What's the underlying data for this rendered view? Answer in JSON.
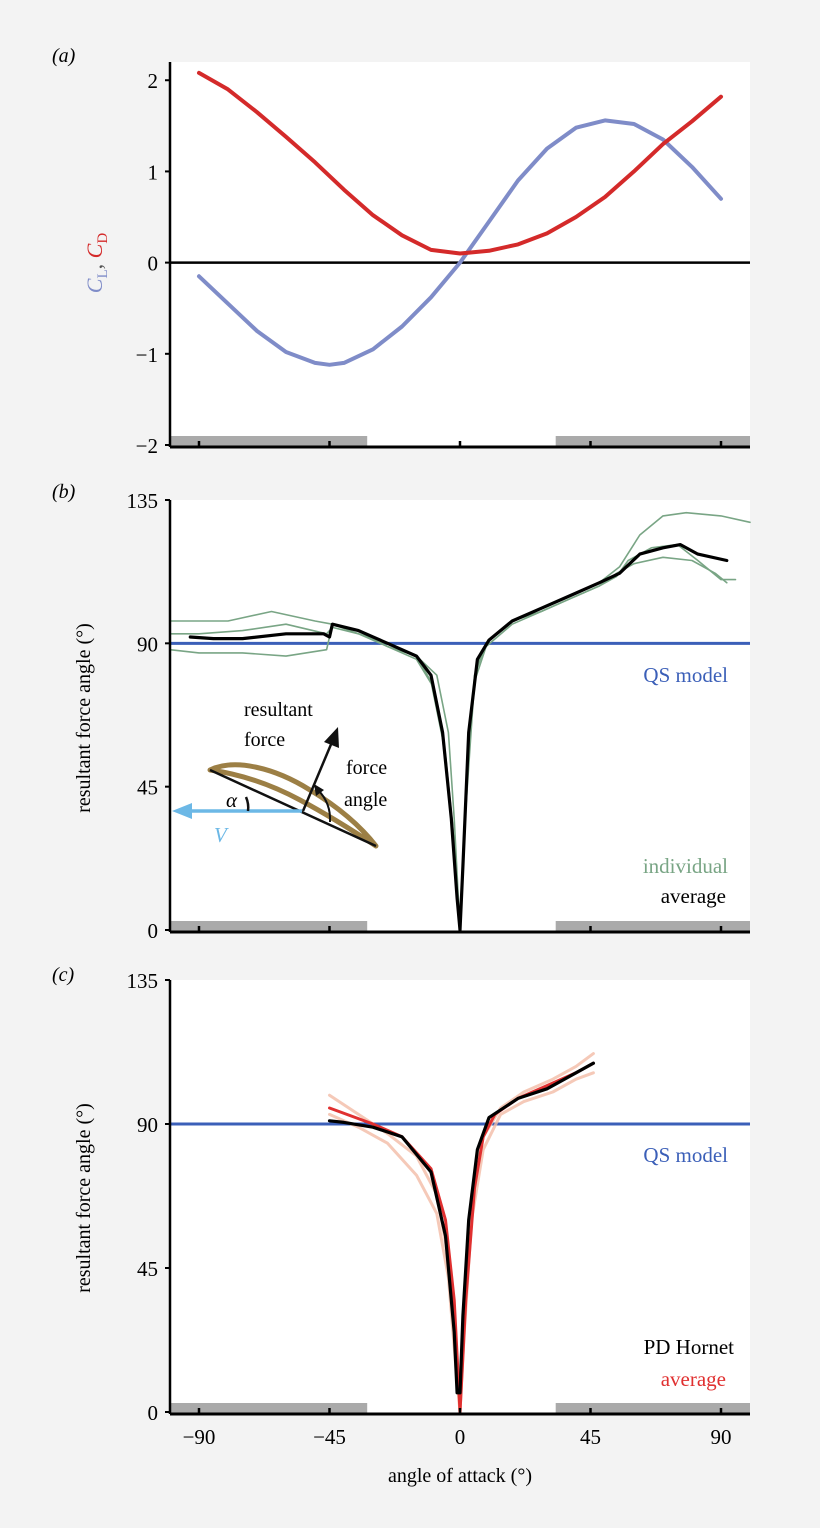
{
  "colors": {
    "lift": "#7f8cc8",
    "drag": "#d42a2a",
    "qs_model": "#3b5fb8",
    "individual": "#79a585",
    "average_b": "#000000",
    "pd_hornet": "#000000",
    "average_c": "#e03030",
    "individual_c": "#f2bca6",
    "stroke_reversal_bar": "#aaaaaa",
    "velocity": "#6cb8e6",
    "wing": "#9c7f45"
  },
  "chart_data": [
    {
      "panel_label": "(a)",
      "type": "line",
      "ylabel_parts": [
        "C",
        "L",
        ", ",
        "C",
        "D"
      ],
      "xlim": [
        -100,
        100
      ],
      "ylim": [
        -2,
        2.2
      ],
      "yticks": [
        2,
        1,
        0,
        -1,
        -2
      ],
      "ytick_labels": [
        "2",
        "1",
        "0",
        "−1",
        "−2"
      ],
      "xticks": [
        -90,
        -45,
        0,
        45,
        90
      ],
      "shaded_x_ranges": [
        [
          -100,
          -32
        ],
        [
          33,
          100
        ]
      ],
      "reference_line_y": 0,
      "series": [
        {
          "key": "lift",
          "x": [
            -90,
            -80,
            -70,
            -60,
            -50,
            -45,
            -40,
            -30,
            -20,
            -10,
            0,
            10,
            20,
            30,
            40,
            50,
            60,
            70,
            80,
            90
          ],
          "y": [
            -0.15,
            -0.45,
            -0.75,
            -0.98,
            -1.1,
            -1.12,
            -1.1,
            -0.95,
            -0.7,
            -0.38,
            0,
            0.45,
            0.9,
            1.25,
            1.48,
            1.56,
            1.52,
            1.35,
            1.05,
            0.7
          ]
        },
        {
          "key": "drag",
          "x": [
            -90,
            -80,
            -70,
            -60,
            -50,
            -40,
            -30,
            -20,
            -10,
            0,
            10,
            20,
            30,
            40,
            50,
            60,
            70,
            80,
            90
          ],
          "y": [
            2.08,
            1.9,
            1.65,
            1.38,
            1.1,
            0.8,
            0.52,
            0.3,
            0.14,
            0.1,
            0.13,
            0.2,
            0.32,
            0.5,
            0.72,
            1.0,
            1.3,
            1.55,
            1.82
          ]
        }
      ]
    },
    {
      "panel_label": "(b)",
      "type": "line",
      "ylabel": "resultant force angle (°)",
      "xlim": [
        -100,
        100
      ],
      "ylim": [
        0,
        135
      ],
      "yticks": [
        135,
        90,
        45,
        0
      ],
      "ytick_labels": [
        "135",
        "90",
        "45",
        "0"
      ],
      "xticks": [
        -90,
        -45,
        0,
        45,
        90
      ],
      "shaded_x_ranges": [
        [
          -100,
          -32
        ],
        [
          33,
          100
        ]
      ],
      "reference_line_y": 90,
      "reference_label": "QS model",
      "legend": [
        "individual",
        "average"
      ],
      "legend_placement": "bottom-right",
      "inset": {
        "resultant_force": [
          "resultant",
          "force"
        ],
        "force_angle": [
          "force",
          "angle"
        ],
        "alpha": "α",
        "velocity": "V"
      },
      "series": [
        {
          "key": "individual",
          "x": [
            -100,
            -90,
            -80,
            -65,
            -50,
            -44,
            -35,
            -25,
            -15,
            -10,
            -6,
            -3,
            -1,
            0,
            1,
            3,
            6,
            10,
            18,
            28,
            38,
            48,
            55,
            62,
            70,
            78,
            90,
            100
          ],
          "y": [
            97,
            97,
            97,
            100,
            97,
            96,
            93,
            90,
            86,
            78,
            60,
            35,
            10,
            0,
            20,
            60,
            84,
            91,
            97,
            101,
            105,
            109,
            114,
            124,
            130,
            131,
            130,
            128
          ]
        },
        {
          "key": "individual",
          "x": [
            -100,
            -90,
            -75,
            -60,
            -46,
            -44,
            -35,
            -25,
            -15,
            -8,
            -4,
            -2,
            0,
            2,
            5,
            9,
            18,
            28,
            38,
            48,
            54,
            58,
            66,
            75,
            82,
            90,
            95
          ],
          "y": [
            93,
            93,
            94,
            96,
            93,
            95,
            93,
            89,
            86,
            80,
            62,
            35,
            0,
            40,
            80,
            90,
            97,
            100,
            104,
            108,
            111,
            116,
            120,
            121,
            116,
            110,
            110
          ]
        },
        {
          "key": "individual",
          "x": [
            -100,
            -90,
            -75,
            -60,
            -46,
            -44,
            -35,
            -25,
            -15,
            -9,
            -5,
            -2,
            0,
            2,
            5,
            9,
            18,
            28,
            38,
            48,
            54,
            60,
            70,
            80,
            88,
            92
          ],
          "y": [
            88,
            87,
            87,
            86,
            88,
            96,
            94,
            89,
            85,
            76,
            55,
            28,
            0,
            38,
            78,
            89,
            96,
            100,
            104,
            108,
            112,
            115,
            117,
            116,
            112,
            109
          ]
        },
        {
          "key": "average_b",
          "x": [
            -93,
            -85,
            -75,
            -60,
            -47,
            -45,
            -44,
            -35,
            -25,
            -15,
            -10,
            -6,
            -3,
            -1,
            0,
            1,
            3,
            6,
            10,
            18,
            28,
            38,
            48,
            55,
            62,
            70,
            76,
            82,
            92
          ],
          "y": [
            92,
            91.5,
            91.5,
            93,
            93,
            92,
            96,
            94,
            90,
            86,
            80,
            62,
            35,
            10,
            0,
            20,
            62,
            85,
            91,
            97,
            101,
            105,
            109,
            112,
            118,
            120,
            121,
            118,
            116
          ]
        }
      ]
    },
    {
      "panel_label": "(c)",
      "type": "line",
      "ylabel": "resultant force angle (°)",
      "xlabel": "angle of attack (°)",
      "xlim": [
        -100,
        100
      ],
      "ylim": [
        0,
        135
      ],
      "yticks": [
        135,
        90,
        45,
        0
      ],
      "ytick_labels": [
        "135",
        "90",
        "45",
        "0"
      ],
      "xticks": [
        -90,
        -45,
        0,
        45,
        90
      ],
      "xtick_labels": [
        "−90",
        "−45",
        "0",
        "45",
        "90"
      ],
      "shaded_x_ranges": [
        [
          -100,
          -32
        ],
        [
          33,
          100
        ]
      ],
      "reference_line_y": 90,
      "reference_label": "QS model",
      "legend": [
        "PD Hornet",
        "average"
      ],
      "legend_placement": "bottom-right",
      "series": [
        {
          "key": "individual_c",
          "x": [
            -45,
            -35,
            -25,
            -15,
            -8,
            -4,
            -1.5,
            0,
            1.5,
            4,
            8,
            14,
            22,
            32,
            40,
            46
          ],
          "y": [
            99,
            93,
            87,
            80,
            68,
            48,
            20,
            0,
            30,
            68,
            86,
            95,
            100,
            104,
            108,
            112
          ]
        },
        {
          "key": "individual_c",
          "x": [
            -45,
            -35,
            -25,
            -15,
            -8,
            -4,
            -1.5,
            0,
            1.5,
            4,
            8,
            14,
            22,
            32,
            40,
            46
          ],
          "y": [
            93,
            89,
            84,
            74,
            62,
            42,
            15,
            0,
            25,
            60,
            82,
            93,
            97,
            100,
            104,
            106
          ]
        },
        {
          "key": "average_c",
          "x": [
            -45,
            -30,
            -20,
            -10,
            -5,
            -2,
            0,
            2,
            5,
            8,
            12,
            20,
            30,
            40,
            46
          ],
          "y": [
            95,
            90,
            86,
            76,
            60,
            35,
            0,
            35,
            70,
            86,
            93,
            98,
            102,
            106,
            109
          ]
        },
        {
          "key": "pd_hornet",
          "x": [
            -45,
            -40,
            -30,
            -20,
            -10,
            -5,
            -2,
            -1,
            0,
            1,
            3,
            6,
            10,
            20,
            30,
            40,
            46
          ],
          "y": [
            91,
            90.5,
            89,
            86,
            75,
            55,
            25,
            6,
            6,
            30,
            60,
            82,
            92,
            98,
            101,
            106,
            109
          ]
        }
      ]
    }
  ]
}
